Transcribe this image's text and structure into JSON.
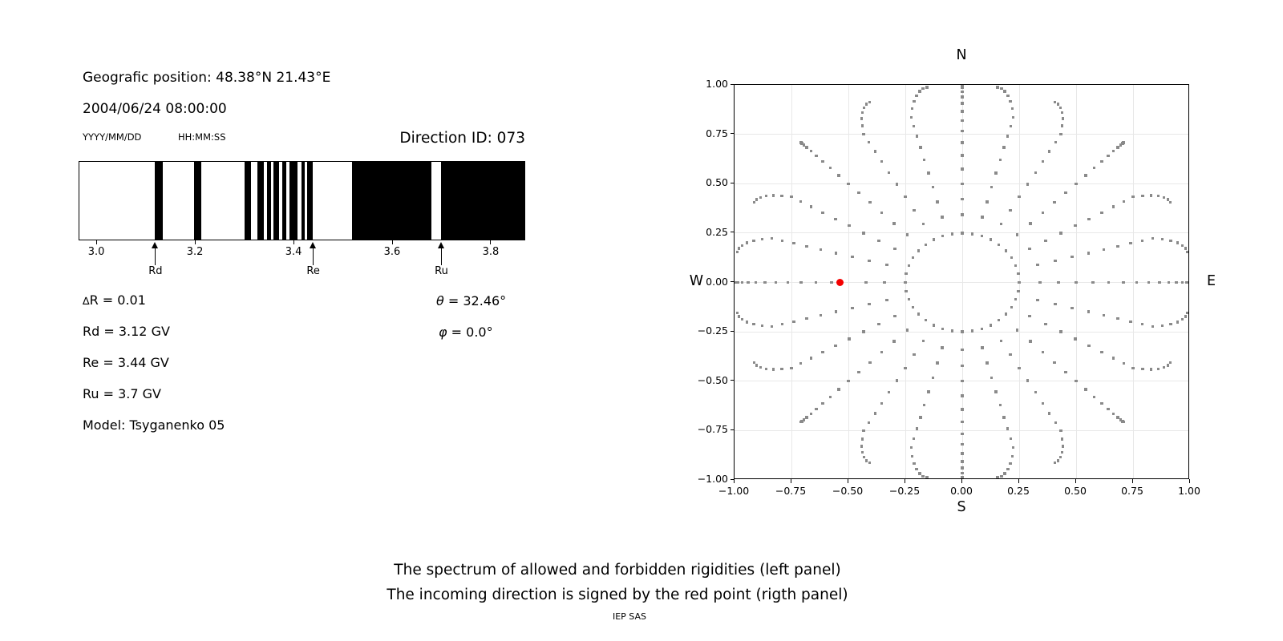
{
  "figure": {
    "left_panel": {
      "position_line": "Geografic position: 48.38°N 21.43°E",
      "datetime_line": "2004/06/24 08:00:00",
      "date_format_label": "YYYY/MM/DD",
      "time_format_label": "HH:MM:SS",
      "direction_id_label": "Direction ID: 073",
      "info_lines": [
        "∆R = 0.01",
        "Rd = 3.12 GV",
        "Re = 3.44 GV",
        "Ru = 3.7 GV",
        "Model: Tsyganenko 05"
      ],
      "theta_line": "θ = 32.46°",
      "phi_line": "φ = 0.0°"
    },
    "captions": {
      "line1": "The spectrum of allowed and forbidden rigidities (left panel)",
      "line2": "The incoming direction is signed by the red point (rigth panel)",
      "credit": "IEP SAS"
    }
  },
  "chart_data": [
    {
      "type": "bar",
      "subtype": "rigidity-penumbra-barcode",
      "description": "Spectrum of allowed (white) and forbidden (black) rigidities in GV",
      "x_range": [
        2.964,
        3.87
      ],
      "x_ticks": [
        3.0,
        3.2,
        3.4,
        3.6,
        3.8
      ],
      "x_tick_labels": [
        "3.0",
        "3.2",
        "3.4",
        "3.6",
        "3.8"
      ],
      "forbidden_bands": [
        [
          3.119,
          3.135
        ],
        [
          3.198,
          3.214
        ],
        [
          3.301,
          3.314
        ],
        [
          3.328,
          3.341
        ],
        [
          3.347,
          3.355
        ],
        [
          3.36,
          3.371
        ],
        [
          3.378,
          3.386
        ],
        [
          3.393,
          3.409
        ],
        [
          3.416,
          3.423
        ],
        [
          3.428,
          3.439
        ],
        [
          3.519,
          3.68
        ],
        [
          3.699,
          3.87
        ]
      ],
      "annotations": [
        {
          "label": "Rd",
          "x": 3.12
        },
        {
          "label": "Re",
          "x": 3.44
        },
        {
          "label": "Ru",
          "x": 3.7
        }
      ],
      "colors": {
        "forbidden": "#000000",
        "allowed": "#ffffff",
        "frame": "#000000"
      }
    },
    {
      "type": "scatter",
      "subtype": "incoming-direction-map",
      "axis_labels": {
        "top": "N",
        "bottom": "S",
        "left": "W",
        "right": "E"
      },
      "xlim": [
        -1,
        1
      ],
      "ylim": [
        -1,
        1
      ],
      "x_ticks": [
        -1.0,
        -0.75,
        -0.5,
        -0.25,
        0.0,
        0.25,
        0.5,
        0.75,
        1.0
      ],
      "y_ticks": [
        -1.0,
        -0.75,
        -0.5,
        -0.25,
        0.0,
        0.25,
        0.5,
        0.75,
        1.0
      ],
      "grid": true,
      "direction_grid": {
        "inner_ring": {
          "radius": 0.25,
          "n_points": 36,
          "azimuth_step_deg": 10
        },
        "rays": {
          "n_azimuths": 24,
          "azimuth_step_deg": 15,
          "zenith_deg_from": 20,
          "zenith_deg_to": 90,
          "zenith_deg_step": 5,
          "radius_rule": "sin(zenith)",
          "tip_bend_max_deg": 7,
          "tip_bend_rule": "-sin(4*azimuth)*(zenith-60)/30 applied for zenith>60 (tips bend toward nearest cardinal axis)",
          "skipped_point": {
            "azimuth_deg": 180,
            "zenith_deg": 30,
            "reason": "replaced by red point"
          }
        }
      },
      "red_point": {
        "x": -0.537,
        "y": 0.0
      },
      "colors": {
        "dots": "#8a8a8a",
        "red_point": "#f40000",
        "grid": "#e8e8e8",
        "frame": "#000000"
      }
    }
  ]
}
